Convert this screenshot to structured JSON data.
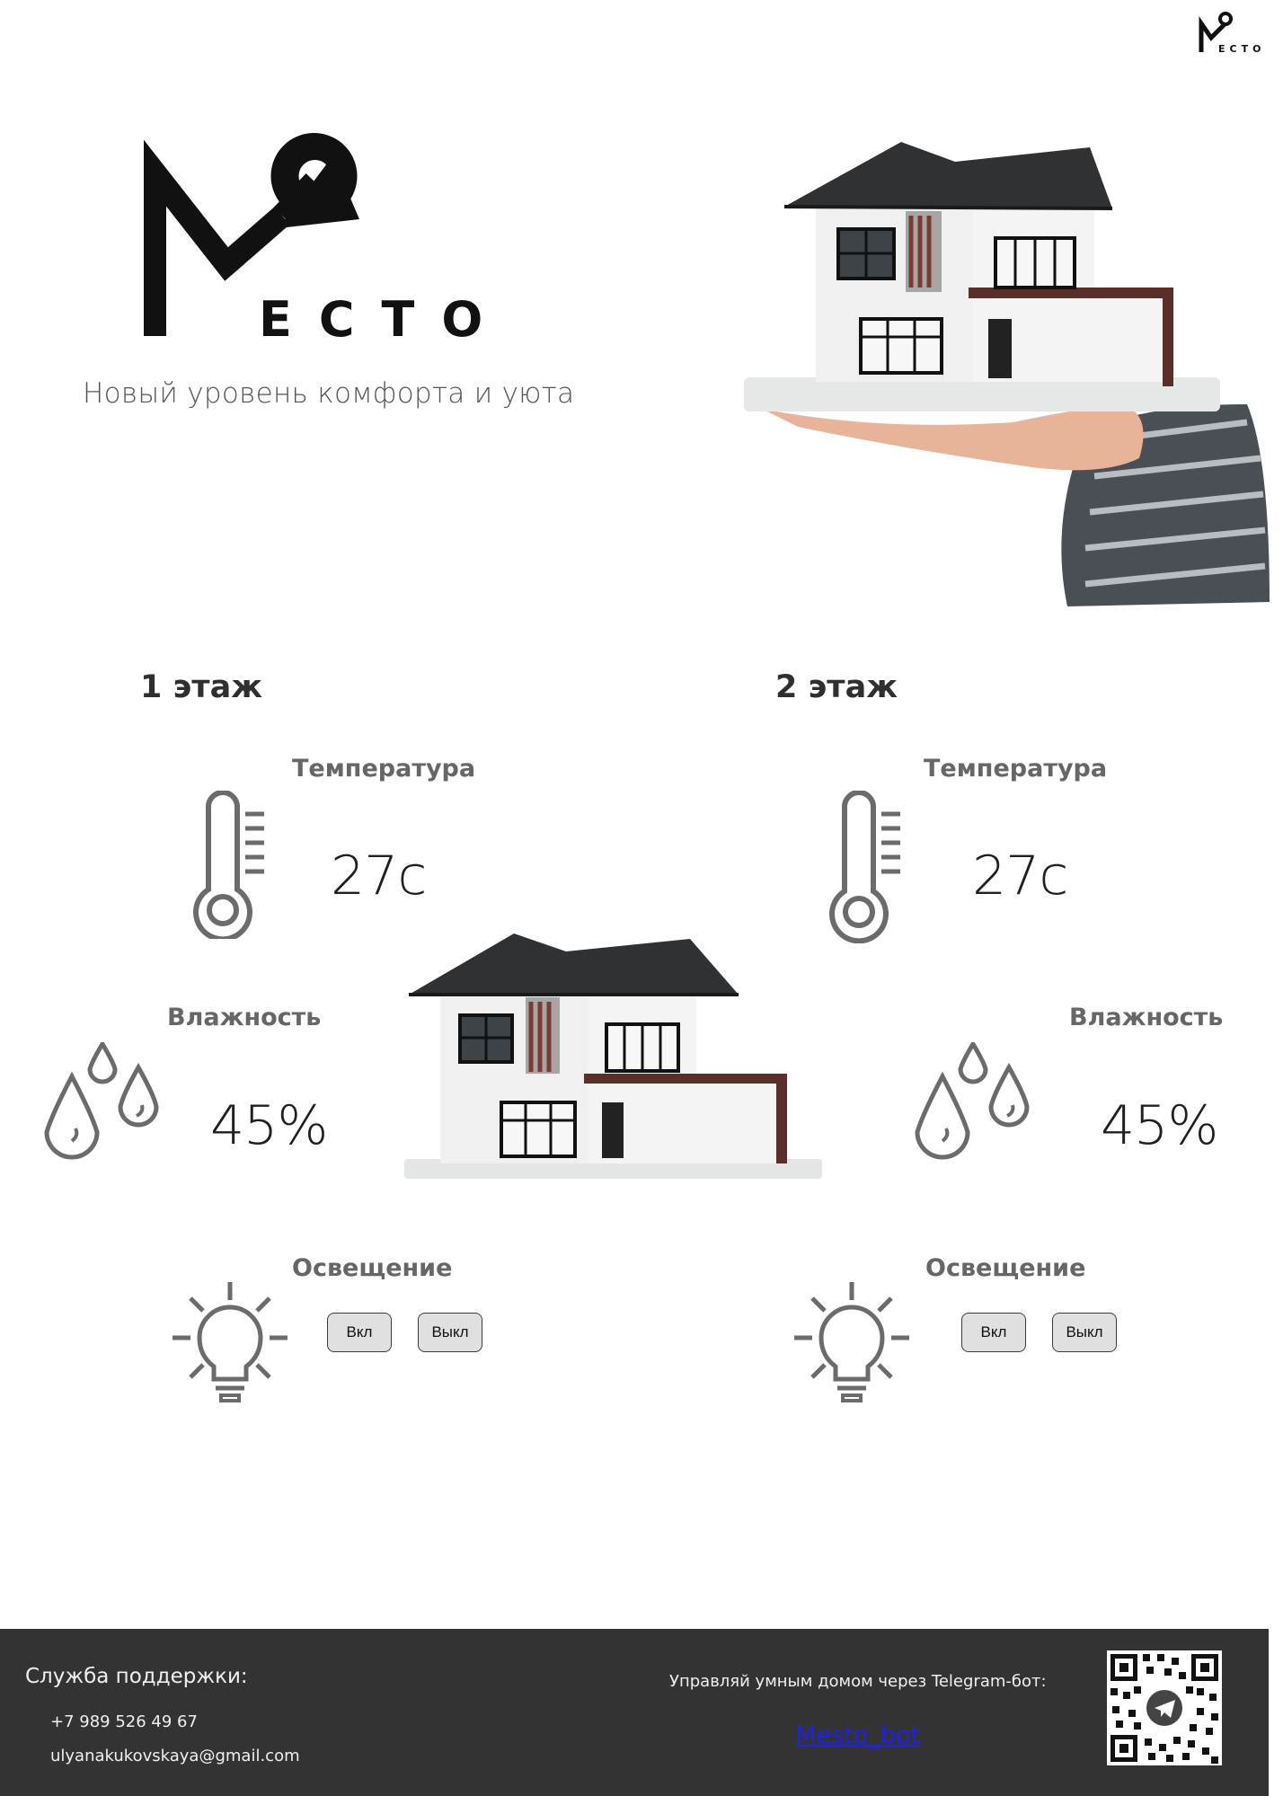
{
  "brand": {
    "name": "MECTO",
    "tagline": "Новый уровень комфорта и уюта"
  },
  "floors": [
    {
      "title": "1 этаж",
      "temperature_label": "Температура",
      "temperature_value": "27c",
      "humidity_label": "Влажность",
      "humidity_value": "45%",
      "lighting_label": "Освещение",
      "on_label": "Вкл",
      "off_label": "Выкл"
    },
    {
      "title": "2 этаж",
      "temperature_label": "Температура",
      "temperature_value": "27c",
      "humidity_label": "Влажность",
      "humidity_value": "45%",
      "lighting_label": "Освещение",
      "on_label": "Вкл",
      "off_label": "Выкл"
    }
  ],
  "footer": {
    "support_title": "Служба поддержки:",
    "phone": "+7 989 526 49 67",
    "email": "ulyanakukovskaya@gmail.com",
    "telegram_text": "Управляй умным домом через Telegram-бот:",
    "bot_link": "Mesto_bot"
  },
  "colors": {
    "icon_gray": "#6b6b6b",
    "footer_bg": "#333333",
    "button_bg": "#e0e0e0",
    "link": "#2020ee"
  }
}
